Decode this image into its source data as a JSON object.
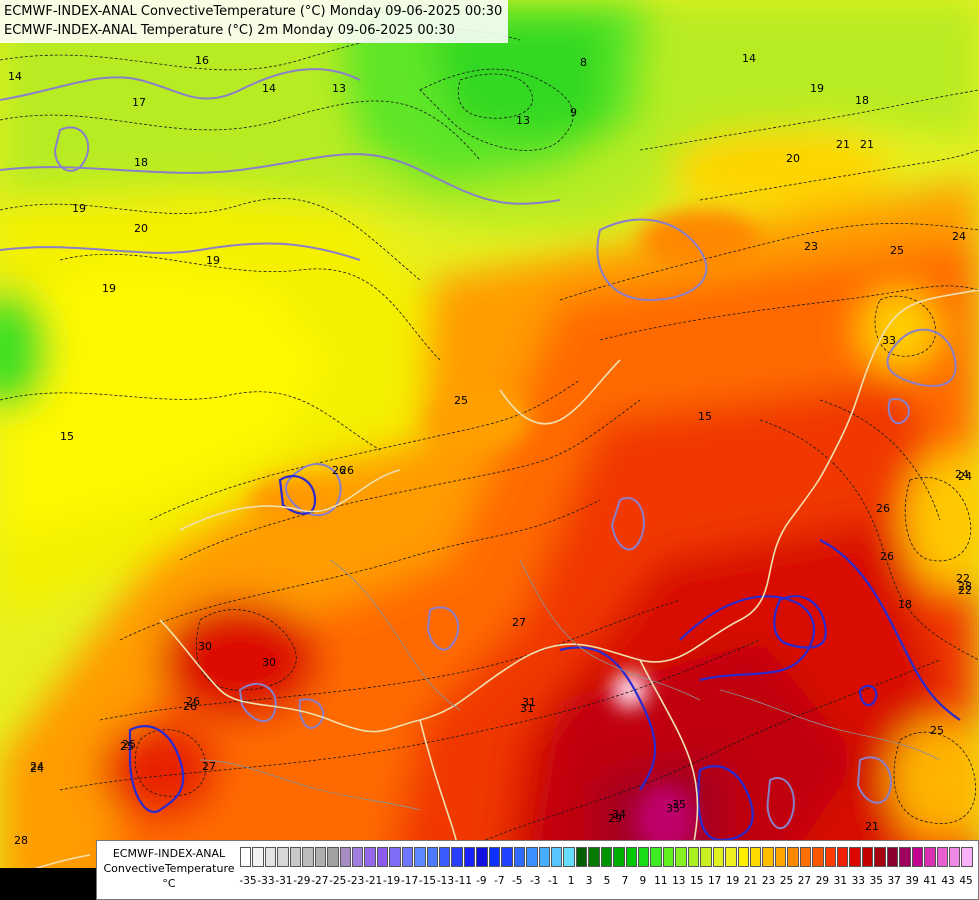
{
  "header": {
    "line1": "ECMWF-INDEX-ANAL ConvectiveTemperature (°C) Monday 09-06-2025 00:30",
    "line2": "ECMWF-INDEX-ANAL Temperature (°C) 2m Monday 09-06-2025 00:30"
  },
  "legend": {
    "label_line1": "ECMWF-INDEX-ANAL",
    "label_line2": "ConvectiveTemperature",
    "label_line3": "°C",
    "tick_labels": [
      "-35",
      "-33",
      "-31",
      "-29",
      "-27",
      "-25",
      "-23",
      "-21",
      "-19",
      "-17",
      "-15",
      "-13",
      "-11",
      "-9",
      "-7",
      "-5",
      "-3",
      "-1",
      "1",
      "3",
      "5",
      "7",
      "9",
      "11",
      "13",
      "15",
      "17",
      "19",
      "21",
      "23",
      "25",
      "27",
      "29",
      "31",
      "33",
      "35",
      "37",
      "39",
      "41",
      "43",
      "45"
    ],
    "colors": [
      "#ffffff",
      "#f2f2f2",
      "#e4e4e4",
      "#d7d7d7",
      "#c9c9c9",
      "#bcbcbc",
      "#afafaf",
      "#a1a1a1",
      "#a88cc4",
      "#9f7ee0",
      "#9468ea",
      "#8b5bf0",
      "#7f6cf7",
      "#6f78ff",
      "#5e88ff",
      "#4c7bff",
      "#3a5cff",
      "#2a3eff",
      "#1a21ff",
      "#1010e0",
      "#0f2fff",
      "#2244ff",
      "#2f6cff",
      "#3c8fff",
      "#49adff",
      "#57c6ff",
      "#64ddff",
      "#005f00",
      "#007a00",
      "#009500",
      "#00b000",
      "#00c800",
      "#18dc18",
      "#3aec20",
      "#60f020",
      "#86f020",
      "#a8f020",
      "#c8f020",
      "#e0f020",
      "#f0f020",
      "#fff000",
      "#ffd800",
      "#ffbe00",
      "#ffa400",
      "#ff8a00",
      "#ff7000",
      "#ff5600",
      "#ff3c00",
      "#f02000",
      "#dc0800",
      "#c40000",
      "#a80010",
      "#8c0030",
      "#a00060",
      "#c00090",
      "#d830b0",
      "#e860d0",
      "#f088e8",
      "#f8b0f8"
    ]
  },
  "contour_labels": [
    "14",
    "16",
    "17",
    "13",
    "8",
    "9",
    "13",
    "14",
    "18",
    "18",
    "19",
    "20",
    "19",
    "19",
    "21",
    "24",
    "25",
    "26",
    "27",
    "25",
    "26",
    "28",
    "25",
    "24",
    "26",
    "30",
    "31",
    "33",
    "35",
    "29",
    "22",
    "24",
    "26",
    "15",
    "25",
    "21",
    "30",
    "28",
    "26",
    "27",
    "25",
    "24",
    "26",
    "31",
    "35",
    "34",
    "18",
    "23",
    "24",
    "22",
    "20",
    "21",
    "19",
    "15",
    "14"
  ]
}
